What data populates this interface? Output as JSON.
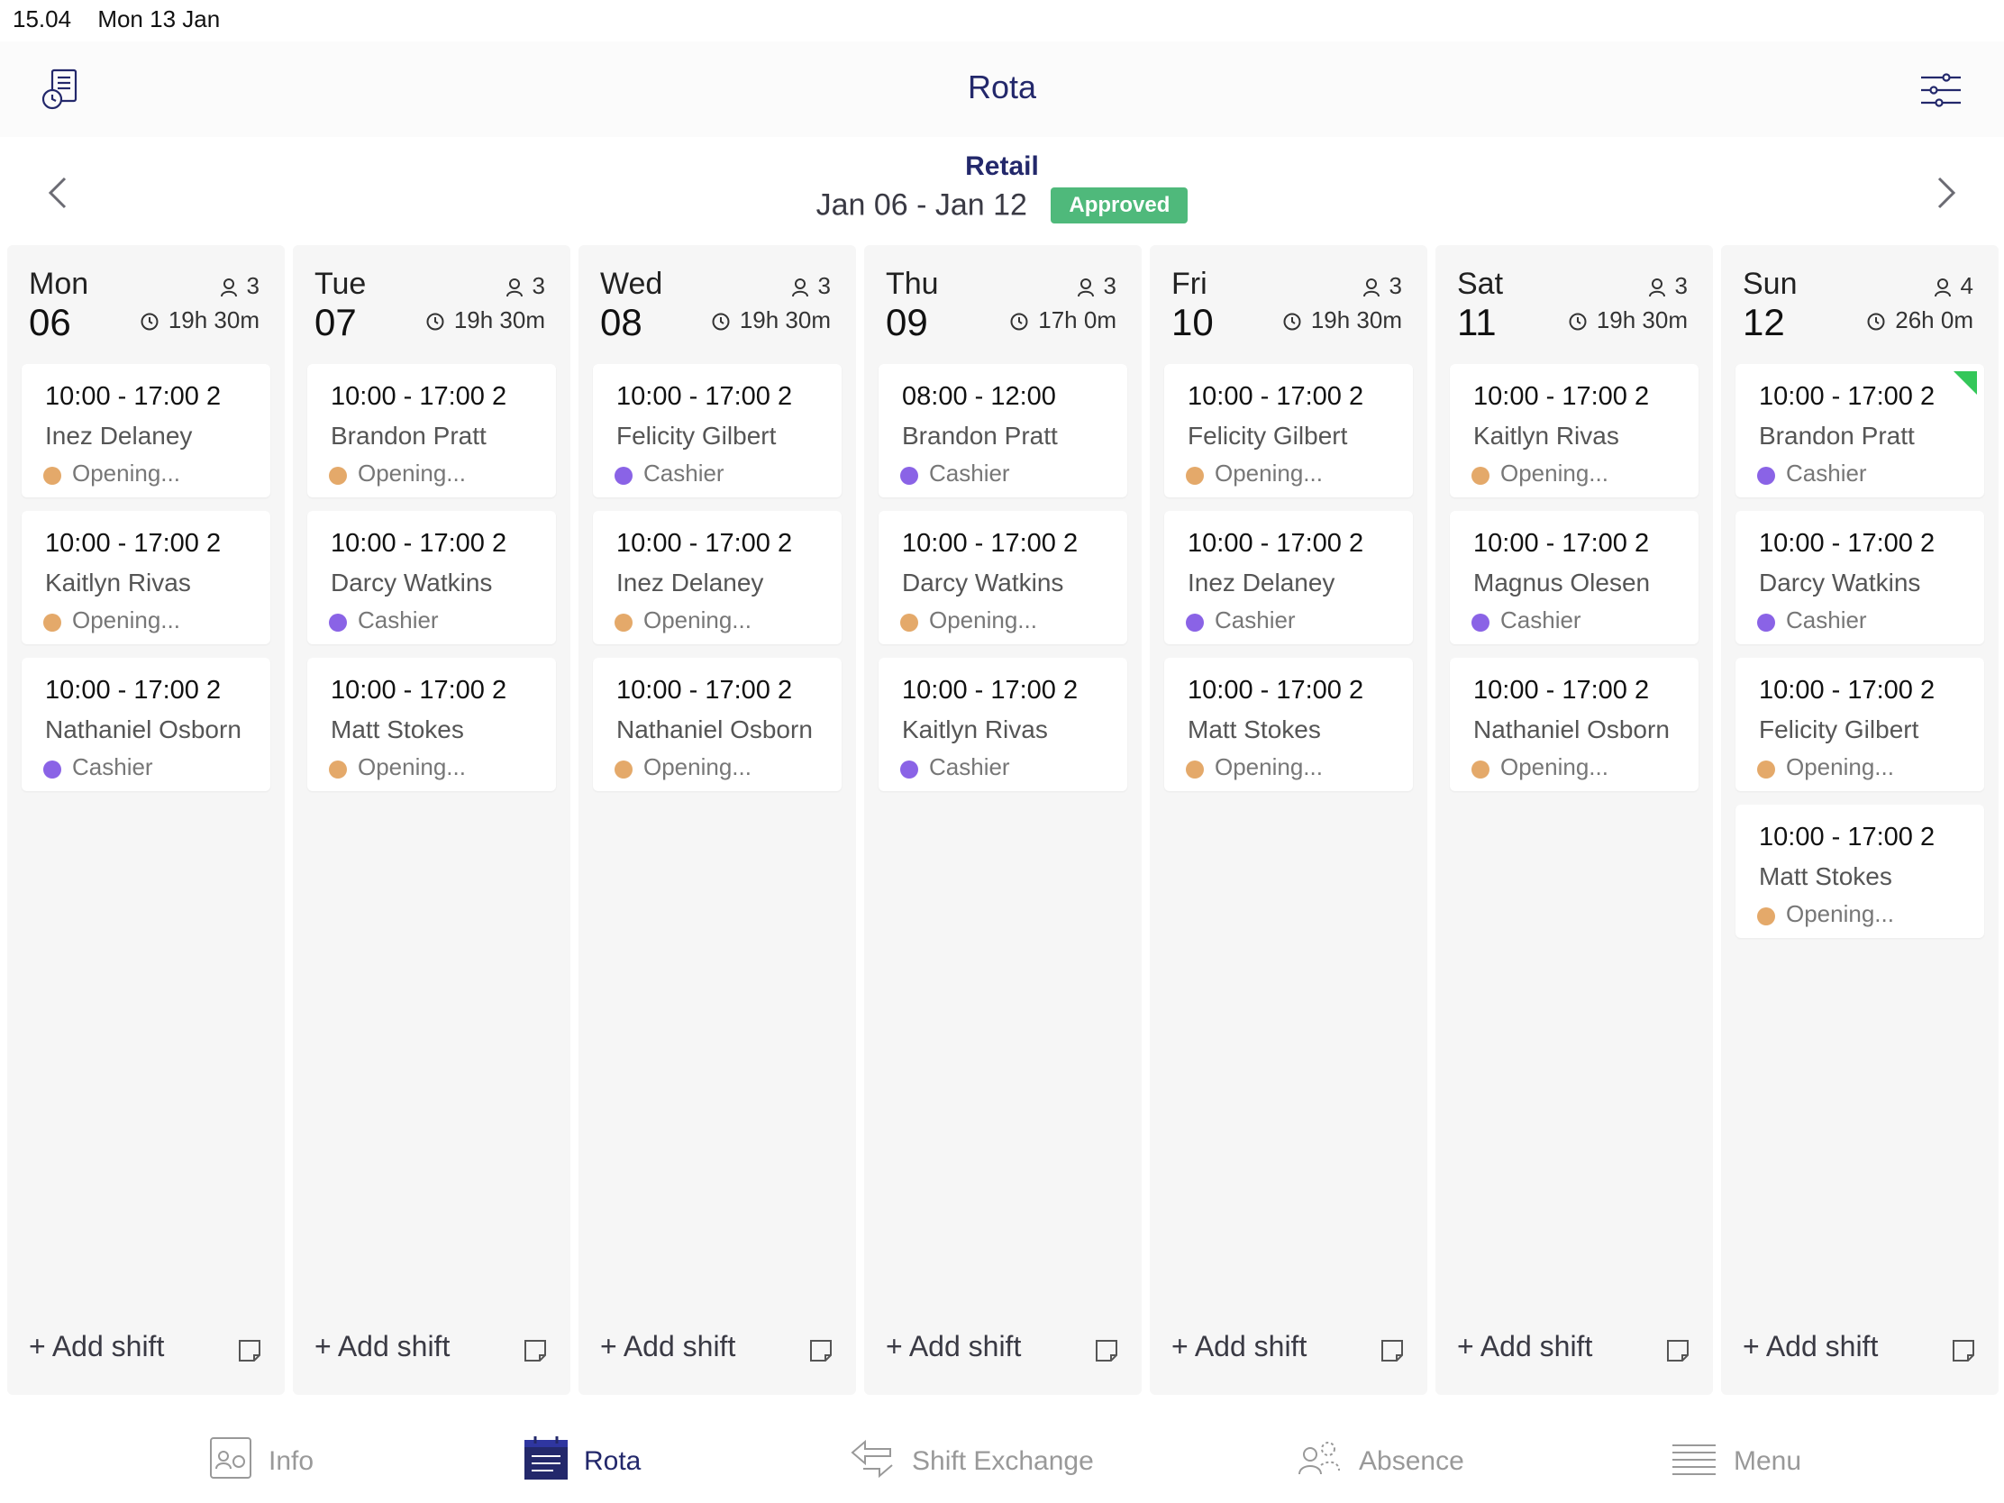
{
  "status_bar": {
    "time": "15.04",
    "date": "Mon 13 Jan"
  },
  "header": {
    "title": "Rota",
    "left_icon": "clipboard-clock-icon",
    "right_icon": "sliders-icon"
  },
  "week": {
    "department": "Retail",
    "range": "Jan 06 - Jan 12",
    "status": "Approved",
    "status_color": "#4fb97b"
  },
  "roles": {
    "Opening": "#e4a96a",
    "Cashier": "#8a63e6"
  },
  "days": [
    {
      "name": "Mon",
      "num": "06",
      "staff": "3",
      "hours": "19h 30m",
      "add_label": "+ Add shift",
      "shifts": [
        {
          "time": "10:00 - 17:00  2",
          "employee": "Inez Delaney",
          "role": "Opening...",
          "role_color": "#e4a96a"
        },
        {
          "time": "10:00 - 17:00  2",
          "employee": "Kaitlyn Rivas",
          "role": "Opening...",
          "role_color": "#e4a96a"
        },
        {
          "time": "10:00 - 17:00  2",
          "employee": "Nathaniel Osborn",
          "role": "Cashier",
          "role_color": "#8a63e6"
        }
      ]
    },
    {
      "name": "Tue",
      "num": "07",
      "staff": "3",
      "hours": "19h 30m",
      "add_label": "+ Add shift",
      "shifts": [
        {
          "time": "10:00 - 17:00  2",
          "employee": "Brandon Pratt",
          "role": "Opening...",
          "role_color": "#e4a96a"
        },
        {
          "time": "10:00 - 17:00  2",
          "employee": "Darcy Watkins",
          "role": "Cashier",
          "role_color": "#8a63e6"
        },
        {
          "time": "10:00 - 17:00  2",
          "employee": "Matt Stokes",
          "role": "Opening...",
          "role_color": "#e4a96a"
        }
      ]
    },
    {
      "name": "Wed",
      "num": "08",
      "staff": "3",
      "hours": "19h 30m",
      "add_label": "+ Add shift",
      "shifts": [
        {
          "time": "10:00 - 17:00  2",
          "employee": "Felicity Gilbert",
          "role": "Cashier",
          "role_color": "#8a63e6"
        },
        {
          "time": "10:00 - 17:00  2",
          "employee": "Inez Delaney",
          "role": "Opening...",
          "role_color": "#e4a96a"
        },
        {
          "time": "10:00 - 17:00  2",
          "employee": "Nathaniel Osborn",
          "role": "Opening...",
          "role_color": "#e4a96a"
        }
      ]
    },
    {
      "name": "Thu",
      "num": "09",
      "staff": "3",
      "hours": "17h 0m",
      "add_label": "+ Add shift",
      "shifts": [
        {
          "time": "08:00 - 12:00",
          "employee": "Brandon Pratt",
          "role": "Cashier",
          "role_color": "#8a63e6"
        },
        {
          "time": "10:00 - 17:00  2",
          "employee": "Darcy Watkins",
          "role": "Opening...",
          "role_color": "#e4a96a"
        },
        {
          "time": "10:00 - 17:00  2",
          "employee": "Kaitlyn Rivas",
          "role": "Cashier",
          "role_color": "#8a63e6"
        }
      ]
    },
    {
      "name": "Fri",
      "num": "10",
      "staff": "3",
      "hours": "19h 30m",
      "add_label": "+ Add shift",
      "shifts": [
        {
          "time": "10:00 - 17:00  2",
          "employee": "Felicity Gilbert",
          "role": "Opening...",
          "role_color": "#e4a96a"
        },
        {
          "time": "10:00 - 17:00  2",
          "employee": "Inez Delaney",
          "role": "Cashier",
          "role_color": "#8a63e6"
        },
        {
          "time": "10:00 - 17:00  2",
          "employee": "Matt Stokes",
          "role": "Opening...",
          "role_color": "#e4a96a"
        }
      ]
    },
    {
      "name": "Sat",
      "num": "11",
      "staff": "3",
      "hours": "19h 30m",
      "add_label": "+ Add shift",
      "shifts": [
        {
          "time": "10:00 - 17:00  2",
          "employee": "Kaitlyn Rivas",
          "role": "Opening...",
          "role_color": "#e4a96a"
        },
        {
          "time": "10:00 - 17:00  2",
          "employee": "Magnus Olesen",
          "role": "Cashier",
          "role_color": "#8a63e6"
        },
        {
          "time": "10:00 - 17:00  2",
          "employee": "Nathaniel Osborn",
          "role": "Opening...",
          "role_color": "#e4a96a"
        }
      ]
    },
    {
      "name": "Sun",
      "num": "12",
      "staff": "4",
      "hours": "26h 0m",
      "add_label": "+ Add shift",
      "shifts": [
        {
          "time": "10:00 - 17:00  2",
          "employee": "Brandon Pratt",
          "role": "Cashier",
          "role_color": "#8a63e6",
          "flagged": true
        },
        {
          "time": "10:00 - 17:00  2",
          "employee": "Darcy Watkins",
          "role": "Cashier",
          "role_color": "#8a63e6"
        },
        {
          "time": "10:00 - 17:00  2",
          "employee": "Felicity Gilbert",
          "role": "Opening...",
          "role_color": "#e4a96a"
        },
        {
          "time": "10:00 - 17:00  2",
          "employee": "Matt Stokes",
          "role": "Opening...",
          "role_color": "#e4a96a"
        }
      ]
    }
  ],
  "tabs": [
    {
      "label": "Info",
      "icon": "info-card-icon",
      "active": false
    },
    {
      "label": "Rota",
      "icon": "calendar-icon",
      "active": true
    },
    {
      "label": "Shift Exchange",
      "icon": "exchange-icon",
      "active": false
    },
    {
      "label": "Absence",
      "icon": "absence-icon",
      "active": false
    },
    {
      "label": "Menu",
      "icon": "menu-icon",
      "active": false
    }
  ]
}
